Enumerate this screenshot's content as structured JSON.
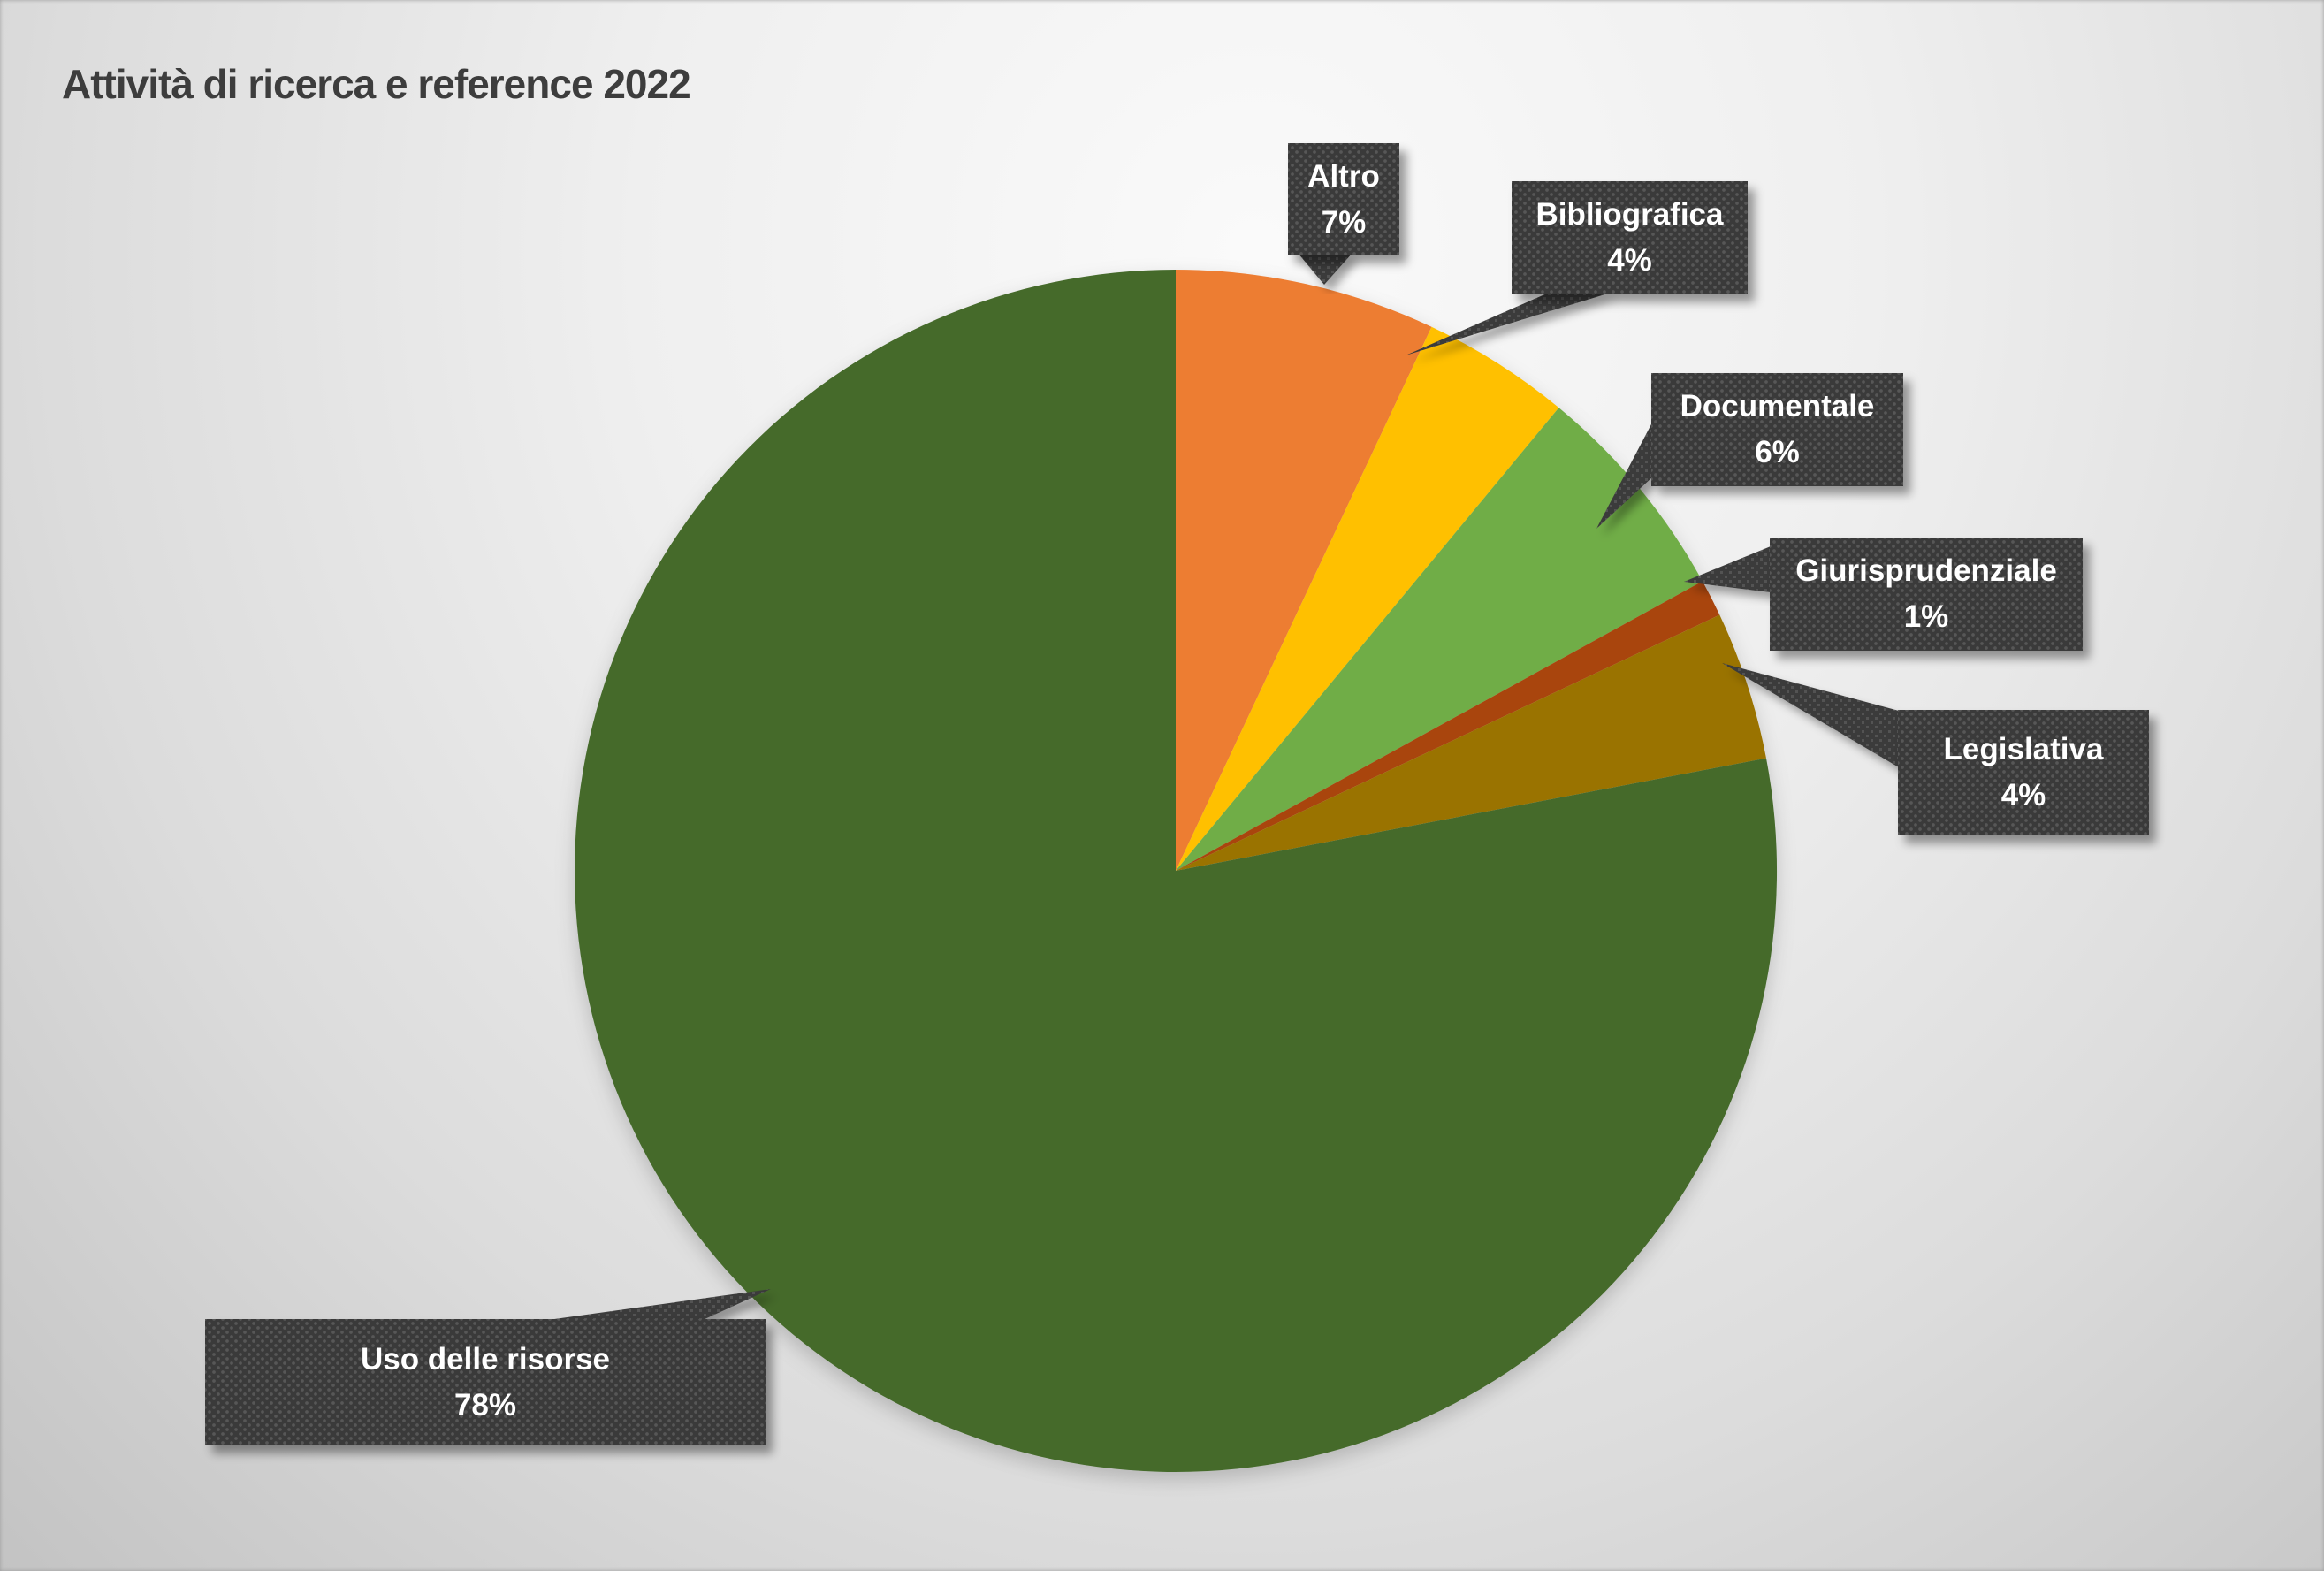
{
  "title": "Attività di ricerca e reference 2022",
  "chart_data": {
    "type": "pie",
    "title": "Attività di ricerca e reference 2022",
    "start_angle_deg": 0,
    "direction": "clockwise",
    "legend_position": "none",
    "data_labels": "callout boxes with category name and percent",
    "slices": [
      {
        "label": "Altro",
        "value": 7,
        "pct_label": "7%",
        "color": "#ED7D31"
      },
      {
        "label": "Bibliografica",
        "value": 4,
        "pct_label": "4%",
        "color": "#FFC000"
      },
      {
        "label": "Documentale",
        "value": 6,
        "pct_label": "6%",
        "color": "#70AD47"
      },
      {
        "label": "Giurisprudenziale",
        "value": 1,
        "pct_label": "1%",
        "color": "#A94410"
      },
      {
        "label": "Legislativa",
        "value": 4,
        "pct_label": "4%",
        "color": "#9A7300"
      },
      {
        "label": "Uso delle risorse",
        "value": 78,
        "pct_label": "78%",
        "color": "#456A2B"
      }
    ]
  },
  "colors": {
    "title_text": "#3D3D3D",
    "callout_background": "#3A3A3A",
    "callout_text": "#FFFFFF",
    "background_center": "#FAFAFA",
    "background_edge": "#C3C3C3"
  }
}
